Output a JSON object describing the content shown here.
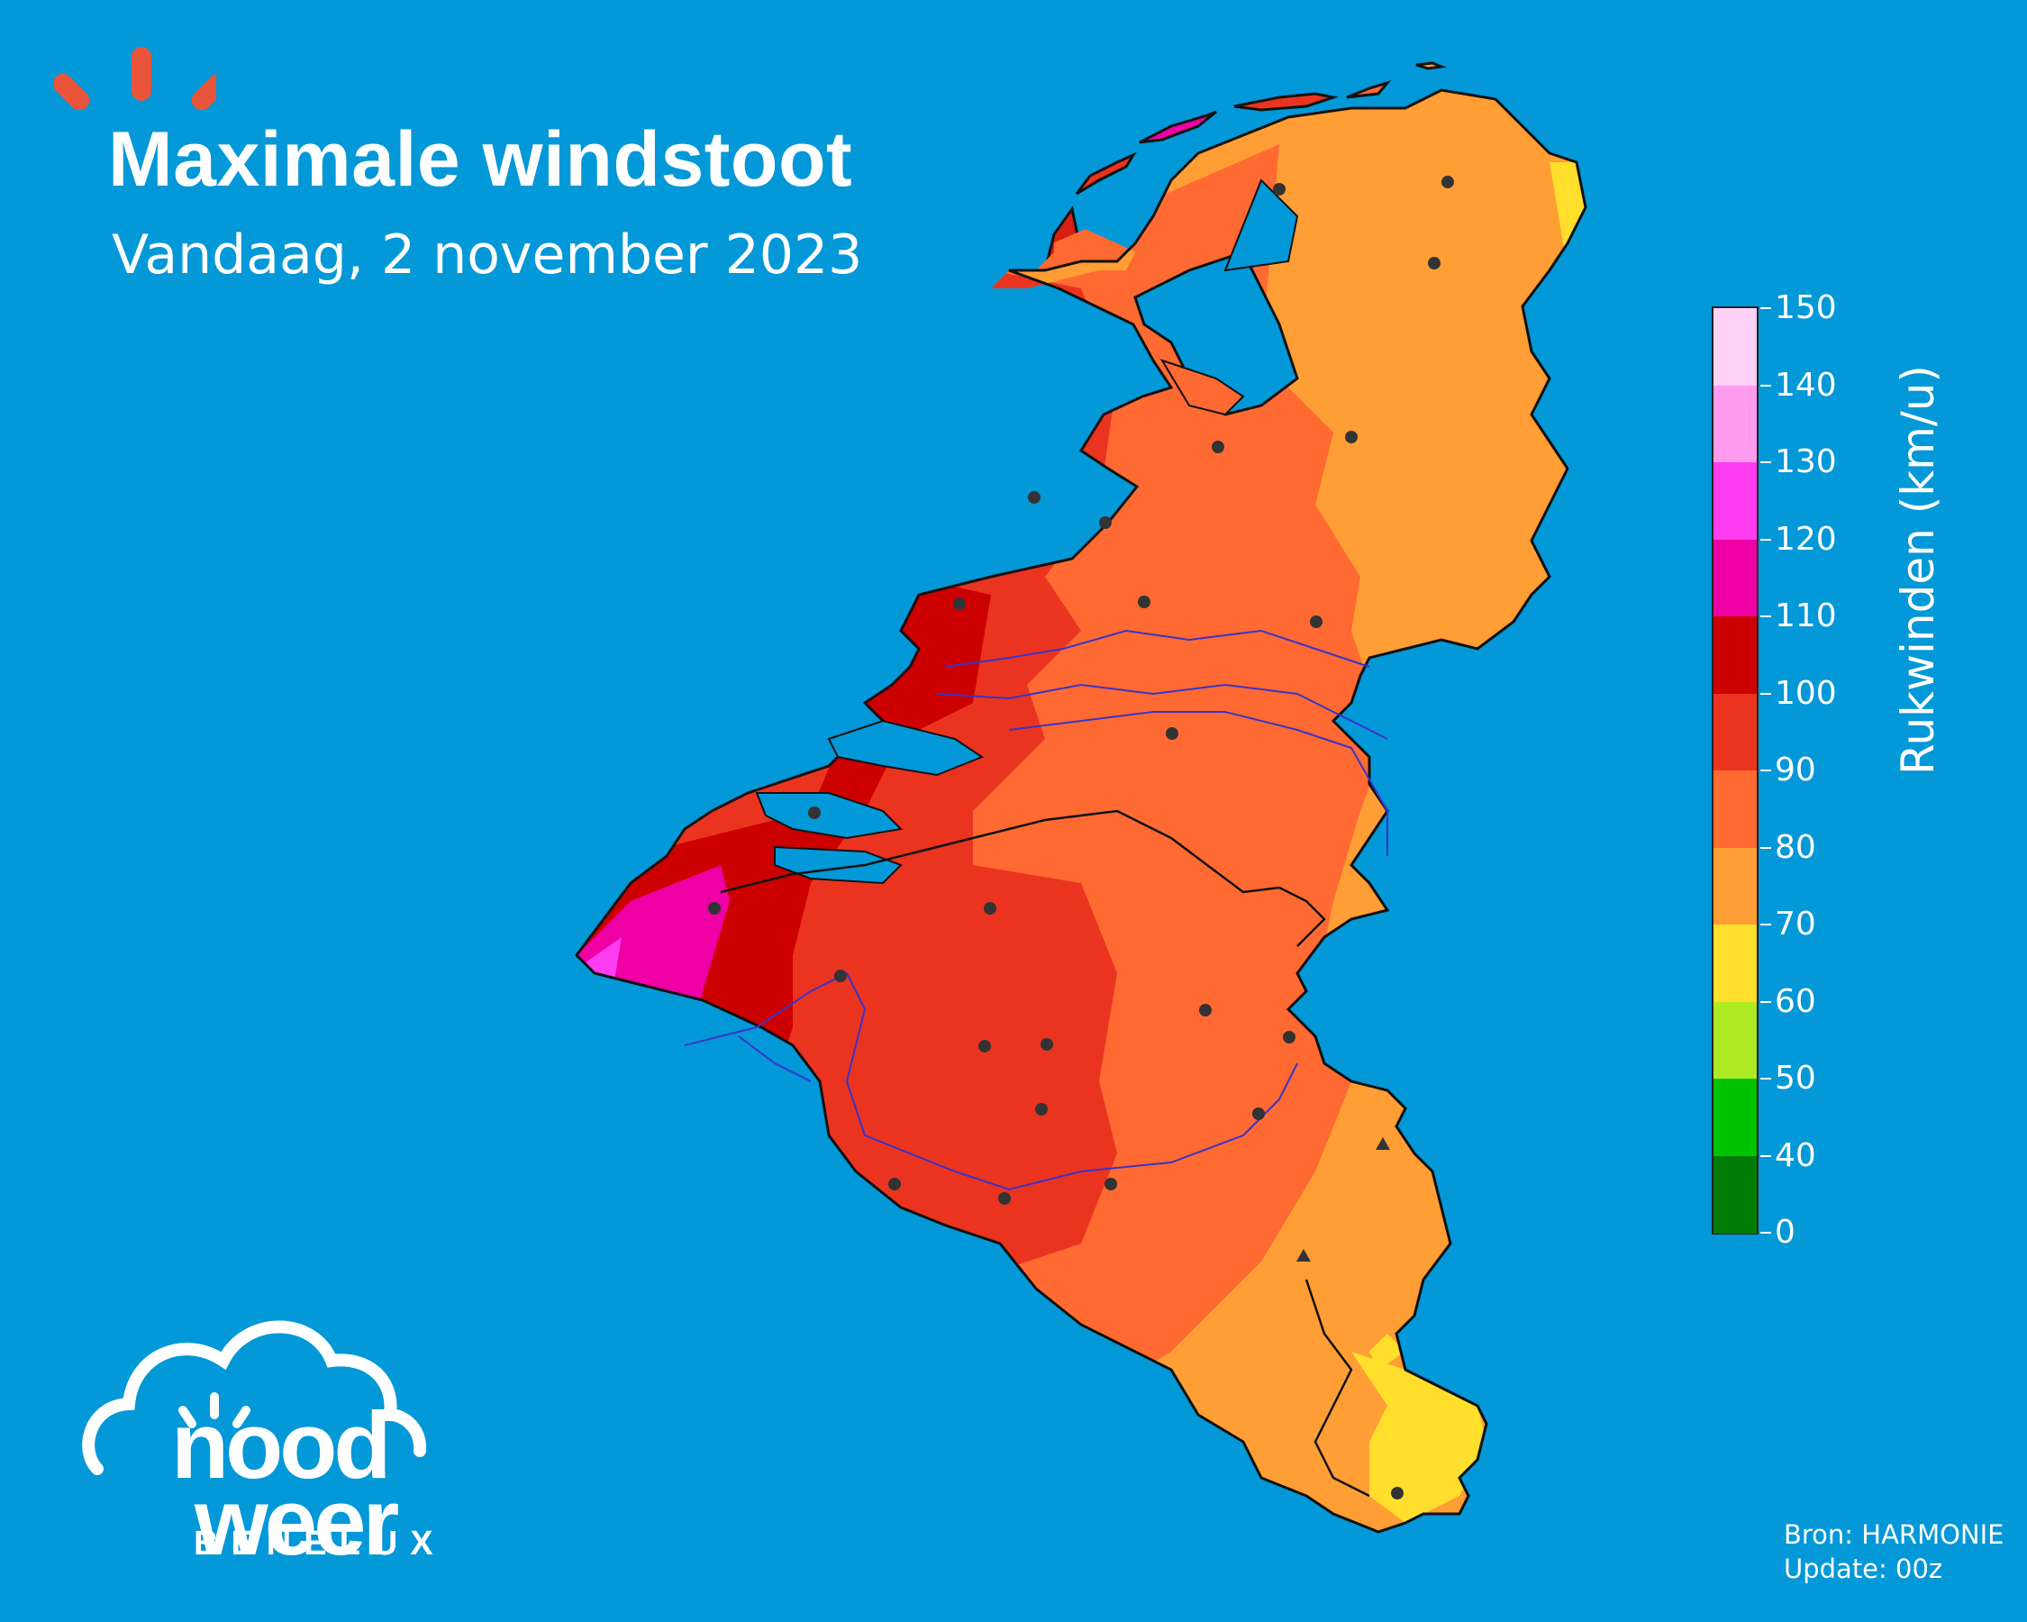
{
  "header": {
    "title": "Maximale windstoot",
    "subtitle": "Vandaag, 2 november 2023"
  },
  "legend": {
    "label": "Rukwinden (km/u)",
    "ticks": [
      "150",
      "140",
      "130",
      "120",
      "110",
      "100",
      "90",
      "80",
      "70",
      "60",
      "50",
      "40",
      "0"
    ],
    "bins": [
      {
        "range": "140-150",
        "color": "#ffd1f5"
      },
      {
        "range": "130-140",
        "color": "#ff9aee"
      },
      {
        "range": "120-130",
        "color": "#ff3cf0"
      },
      {
        "range": "110-120",
        "color": "#ee00a4"
      },
      {
        "range": "100-110",
        "color": "#cc0000"
      },
      {
        "range": "90-100",
        "color": "#ea3420"
      },
      {
        "range": "80-90",
        "color": "#ff6a32"
      },
      {
        "range": "70-80",
        "color": "#ff9e35"
      },
      {
        "range": "60-70",
        "color": "#ffdf2c"
      },
      {
        "range": "50-60",
        "color": "#aeea24"
      },
      {
        "range": "40-50",
        "color": "#00c300"
      },
      {
        "range": "0-40",
        "color": "#007b06"
      }
    ]
  },
  "source": {
    "line1": "Bron: HARMONIE",
    "line2": "Update: 00z"
  },
  "brand": {
    "logo_word1": "nood",
    "logo_word2": "weer",
    "logo_sub": "BENELUX"
  },
  "background_color": "#0398d8"
}
